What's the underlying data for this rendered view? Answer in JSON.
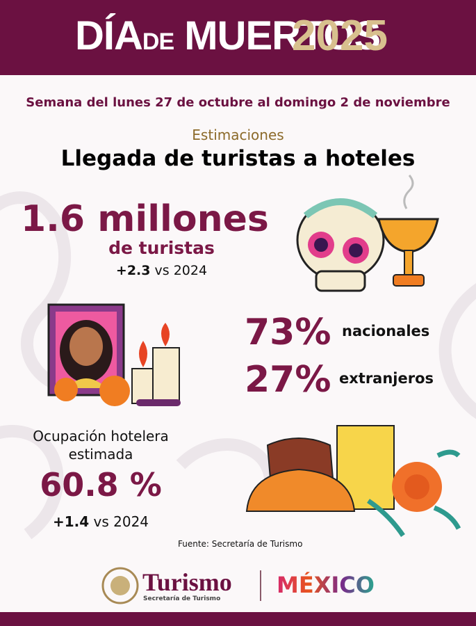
{
  "header": {
    "title_a": "DÍA",
    "title_b": "DE",
    "title_c": "MUERTOS",
    "year": "2025"
  },
  "subtitle": "Semana del lunes 27 de octubre al domingo 2 de noviembre",
  "section": {
    "kicker": "Estimaciones",
    "title": "Llegada de turistas a hoteles"
  },
  "tourists": {
    "value": "1.6 millones",
    "unit": "de turistas",
    "change": "+2.3",
    "change_note": "vs 2024"
  },
  "split": [
    {
      "value": "73%",
      "label": "nacionales"
    },
    {
      "value": "27%",
      "label": "extranjeros"
    }
  ],
  "occupancy": {
    "label": "Ocupación hotelera estimada",
    "value": "60.8 %",
    "change": "+1.4",
    "change_note": "vs 2024"
  },
  "source": "Fuente: Secretaría de Turismo",
  "footer": {
    "brand": "Turismo",
    "agency": "Secretaría de Turismo",
    "country": "MÉXICO"
  }
}
